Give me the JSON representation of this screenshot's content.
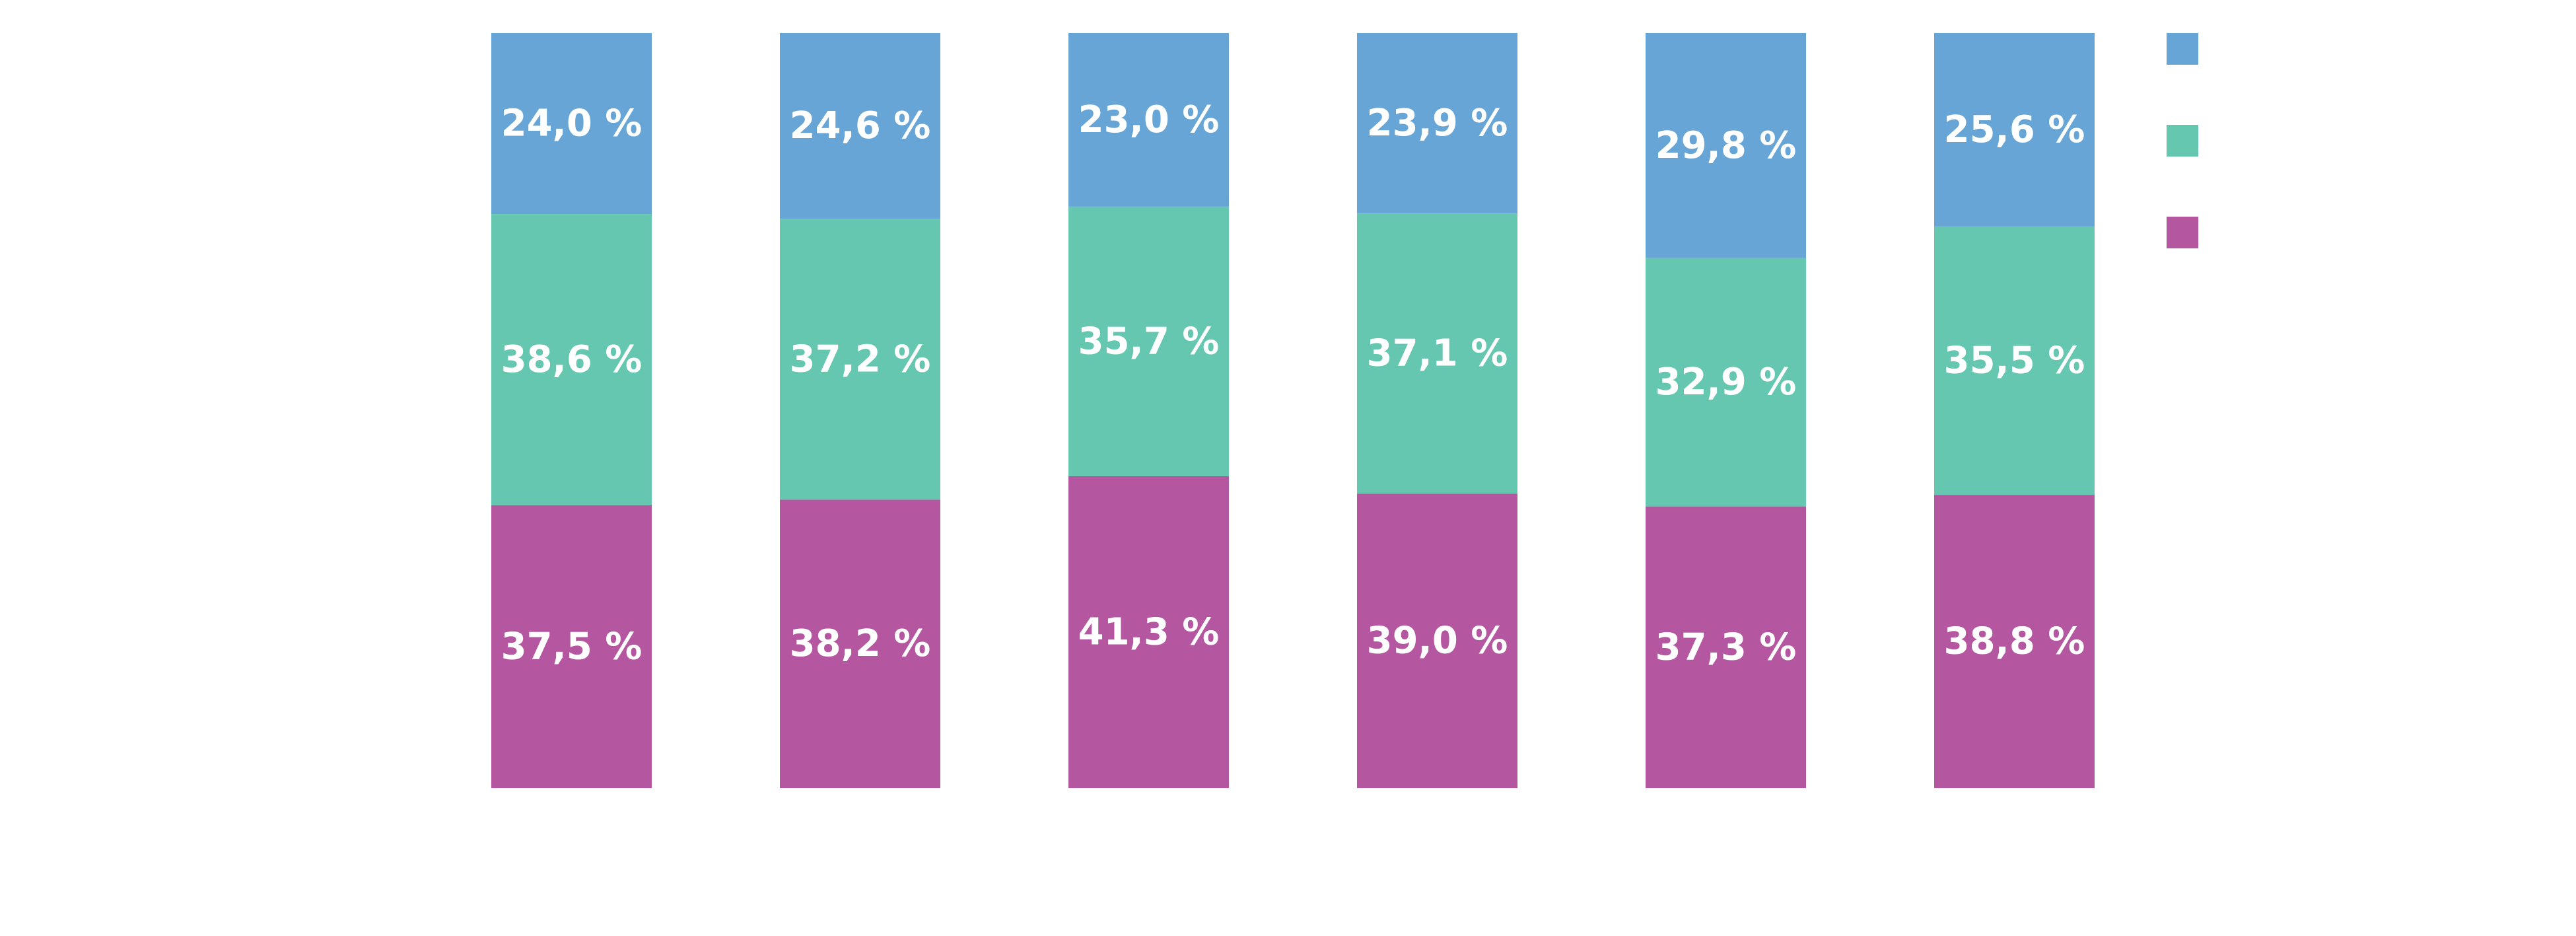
{
  "chart_data": {
    "type": "bar",
    "stacked": true,
    "orientation": "vertical",
    "categories": [
      "",
      "",
      "",
      "",
      "",
      ""
    ],
    "series": [
      {
        "color": "#B557A0",
        "values": [
          37.5,
          38.2,
          41.3,
          39.0,
          37.3,
          38.8
        ],
        "labels": [
          "37,5 %",
          "38,2 %",
          "41,3 %",
          "39,0 %",
          "37,3 %",
          "38,8 %"
        ]
      },
      {
        "color": "#65C7B0",
        "values": [
          38.6,
          37.2,
          35.7,
          37.1,
          32.9,
          35.5
        ],
        "labels": [
          "38,6 %",
          "37,2 %",
          "35,7 %",
          "37,1 %",
          "32,9 %",
          "35,5 %"
        ]
      },
      {
        "color": "#66A5D5",
        "values": [
          24.0,
          24.6,
          23.0,
          23.9,
          29.8,
          25.6
        ],
        "labels": [
          "24,0 %",
          "24,6 %",
          "23,0 %",
          "23,9 %",
          "29,8 %",
          "25,6 %"
        ]
      }
    ],
    "ylim": [
      0,
      100
    ],
    "unit": "%",
    "grid": false,
    "legend": {
      "placement": "right",
      "entries": [
        "",
        "",
        ""
      ],
      "colors": [
        "#66A5D5",
        "#65C7B0",
        "#B557A0"
      ]
    }
  }
}
